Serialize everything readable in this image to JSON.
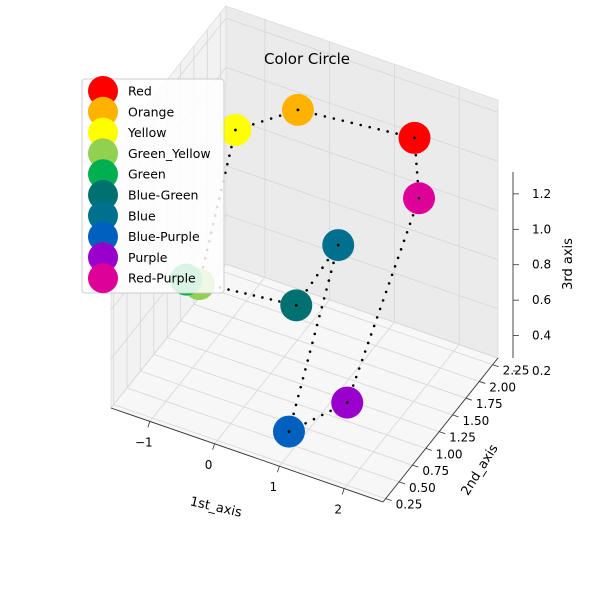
{
  "chart_data": {
    "type": "scatter",
    "title": "Color Circle",
    "xlabel": "1st_axis",
    "ylabel": "2nd_axis",
    "zlabel": "3rd axis",
    "xlim": [
      -1.6,
      2.6
    ],
    "ylim": [
      0.2,
      2.35
    ],
    "zlim": [
      0.2,
      1.25
    ],
    "xticks": [
      -1,
      0,
      1,
      2
    ],
    "yticks": [
      0.25,
      0.5,
      0.75,
      1.0,
      1.25,
      1.5,
      1.75,
      2.0,
      2.25
    ],
    "zticks": [
      0.2,
      0.4,
      0.6,
      0.8,
      1.0,
      1.2
    ],
    "grid": true,
    "legend_placement": "upper-left",
    "points": [
      {
        "name": "Red",
        "color": "#ff0000",
        "x": 1.6,
        "y": 2.0,
        "z": 1.1
      },
      {
        "name": "Orange",
        "color": "#ffb300",
        "x": -0.2,
        "y": 2.0,
        "z": 1.05
      },
      {
        "name": "Yellow",
        "color": "#ffff00",
        "x": -1.0,
        "y": 1.8,
        "z": 0.95
      },
      {
        "name": "Green_Yellow",
        "color": "#92d050",
        "x": -0.9,
        "y": 1.0,
        "z": 0.55
      },
      {
        "name": "Green",
        "color": "#00b050",
        "x": -1.1,
        "y": 1.0,
        "z": 0.55
      },
      {
        "name": "Blue-Green",
        "color": "#007070",
        "x": 0.6,
        "y": 1.0,
        "z": 0.6
      },
      {
        "name": "Blue",
        "color": "#00708f",
        "x": 1.0,
        "y": 1.3,
        "z": 0.8
      },
      {
        "name": "Blue-Purple",
        "color": "#0060c0",
        "x": 0.9,
        "y": 0.5,
        "z": 0.25
      },
      {
        "name": "Purple",
        "color": "#9900cc",
        "x": 1.8,
        "y": 0.5,
        "z": 0.45
      },
      {
        "name": "Red-Purple",
        "color": "#dd0099",
        "x": 2.0,
        "y": 1.6,
        "z": 1.0
      }
    ]
  }
}
